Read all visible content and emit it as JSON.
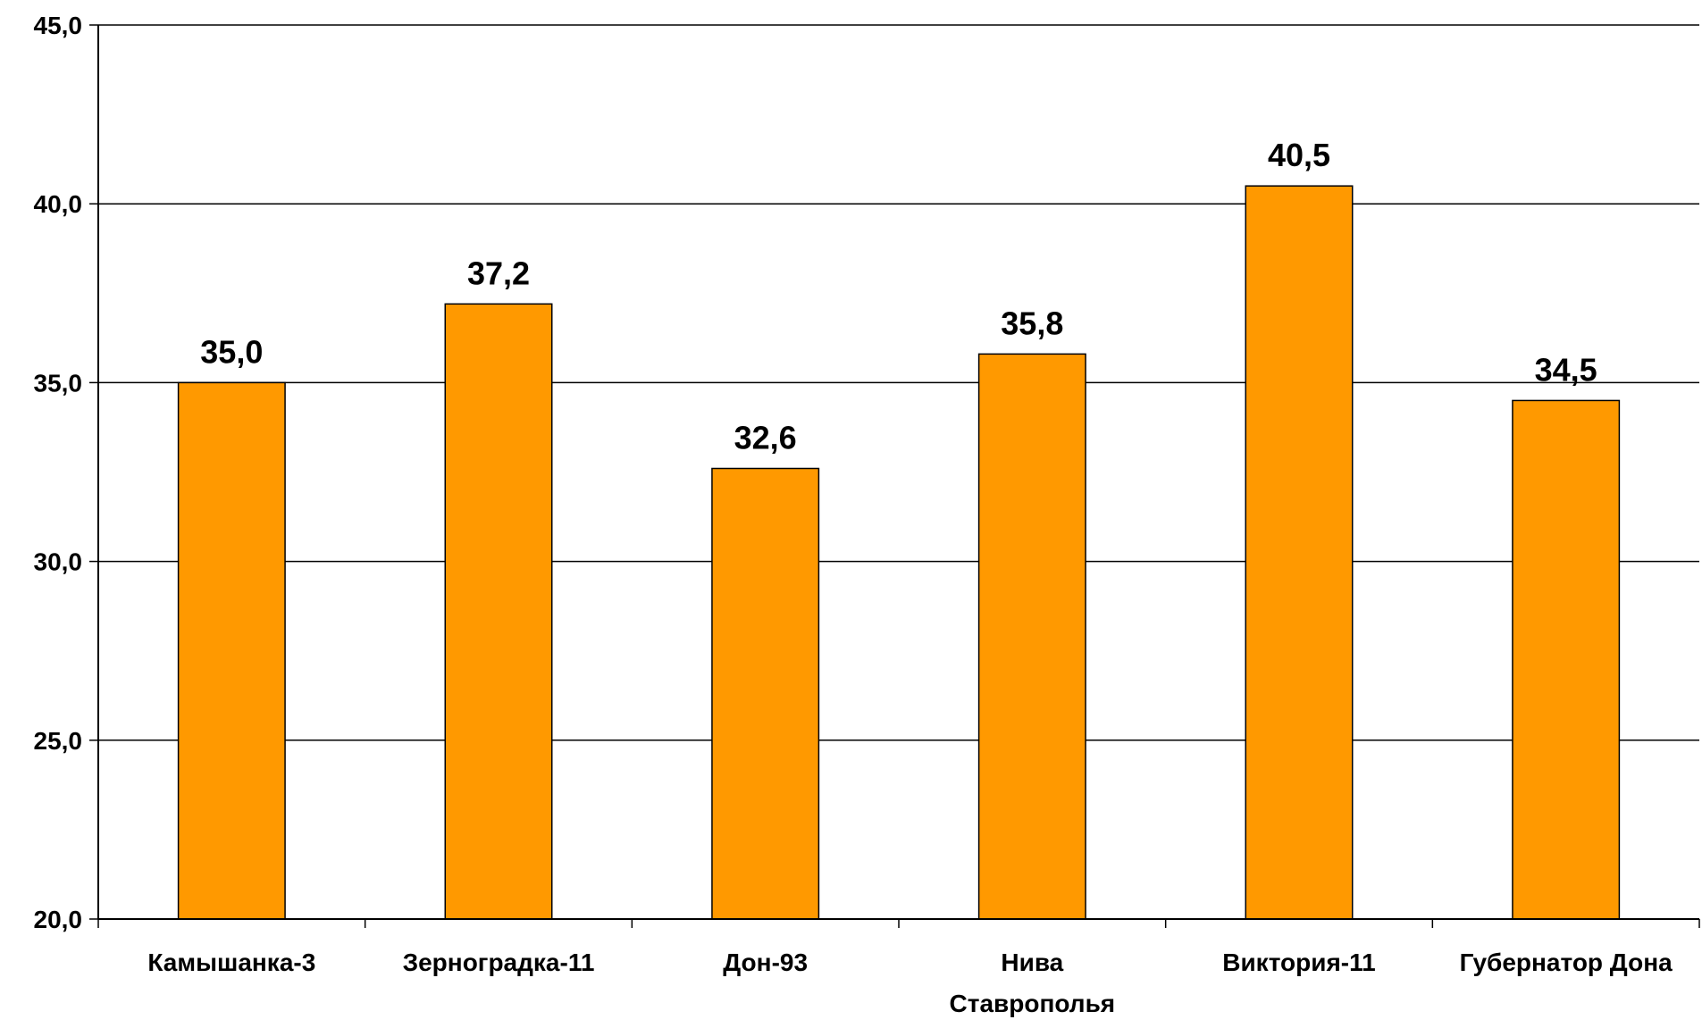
{
  "chart_data": {
    "type": "bar",
    "title": "",
    "xlabel": "",
    "ylabel": "",
    "categories": [
      "Камышанка-3",
      "Зерноградка-11",
      "Дон-93",
      "Нива Ставрополья",
      "Виктория-11",
      "Губернатор Дона"
    ],
    "category_lines": [
      [
        "Камышанка-3"
      ],
      [
        "Зерноградка-11"
      ],
      [
        "Дон-93"
      ],
      [
        "Нива",
        "Ставрополья"
      ],
      [
        "Виктория-11"
      ],
      [
        "Губернатор Дона"
      ]
    ],
    "values": [
      35.0,
      37.2,
      32.6,
      35.8,
      40.5,
      34.5
    ],
    "data_labels": [
      "35,0",
      "37,2",
      "32,6",
      "35,8",
      "40,5",
      "34,5"
    ],
    "ylim": [
      20.0,
      45.0
    ],
    "yticks": [
      20,
      25,
      30,
      35,
      40,
      45
    ],
    "ytick_labels": [
      "20,0",
      "25,0",
      "30,0",
      "35,0",
      "40,0",
      "45,0"
    ],
    "grid": true,
    "legend": "none",
    "colors": {
      "bar_fill": "#FF9900",
      "bar_stroke": "#000000",
      "grid": "#000000",
      "axis": "#000000"
    }
  }
}
